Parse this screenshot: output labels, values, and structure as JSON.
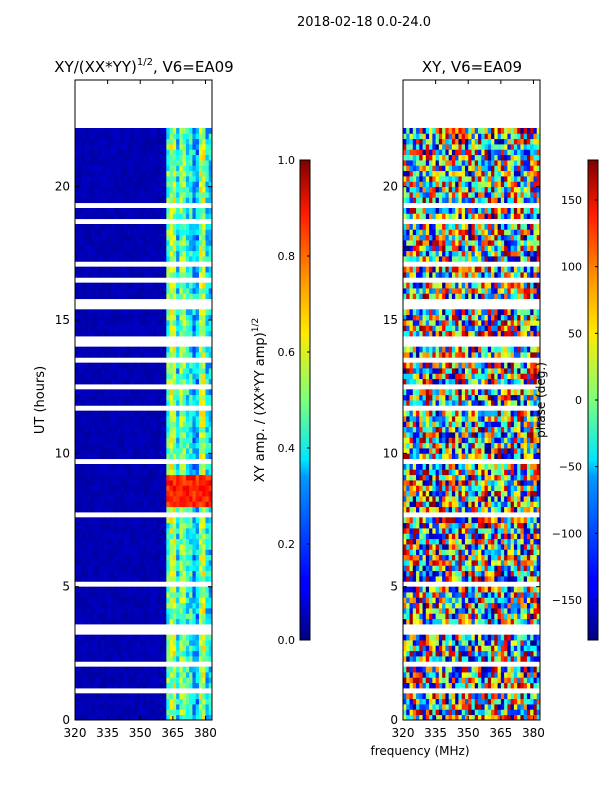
{
  "figure": {
    "suptitle": "2018-02-18 0.0-24.0",
    "shared_xlabel": "frequency (MHz)"
  },
  "chart_data": [
    {
      "type": "heatmap",
      "title": "XY/(XX*YY)",
      "title_exponent": "1/2",
      "title_suffix": ", V6=EA09",
      "xlabel": "",
      "ylabel": "UT (hours)",
      "xlim": [
        320,
        383
      ],
      "ylim": [
        0,
        24
      ],
      "xticks": [
        320,
        335,
        350,
        365,
        380
      ],
      "xtick_labels": [
        "320",
        "335",
        "350",
        "365",
        "380"
      ],
      "yticks": [
        0,
        5,
        10,
        15,
        20
      ],
      "ytick_labels": [
        "0",
        "5",
        "10",
        "15",
        "20"
      ],
      "colormap": "jet",
      "colorbar": {
        "label": "XY amp. / (XX*YY amp)",
        "label_exponent": "1/2",
        "range": [
          0.0,
          1.0
        ],
        "ticks": [
          0.0,
          0.2,
          0.4,
          0.6,
          0.8,
          1.0
        ],
        "tick_labels": [
          "0.0",
          "0.2",
          "0.4",
          "0.6",
          "0.8",
          "1.0"
        ]
      },
      "notes": "Mostly low amplitude (~0.05) below ~362 MHz; moderate values (0.3-0.6) in bands between ~362 and ~382 MHz; high values (~0.8-0.9) near 362-380 MHz around UT 8-9 h; no data above ~22.3 h."
    },
    {
      "type": "heatmap",
      "title": "XY, V6=EA09",
      "xlabel": "frequency (MHz)",
      "ylabel": "",
      "xlim": [
        320,
        383
      ],
      "ylim": [
        0,
        24
      ],
      "xticks": [
        320,
        335,
        350,
        365,
        380
      ],
      "xtick_labels": [
        "320",
        "335",
        "350",
        "365",
        "380"
      ],
      "yticks": [
        0,
        5,
        10,
        15,
        20
      ],
      "ytick_labels": [
        "0",
        "5",
        "10",
        "15",
        "20"
      ],
      "colormap": "jet",
      "colorbar": {
        "label": "phase (deg.)",
        "range": [
          -180,
          180
        ],
        "ticks": [
          -150,
          -100,
          -50,
          0,
          50,
          100,
          150
        ],
        "tick_labels": [
          "−150",
          "−100",
          "−50",
          "0",
          "50",
          "100",
          "150"
        ]
      },
      "notes": "Phase appears noisy, spanning the full range from -180 to 180 degrees; no data above ~22.3 h."
    }
  ]
}
